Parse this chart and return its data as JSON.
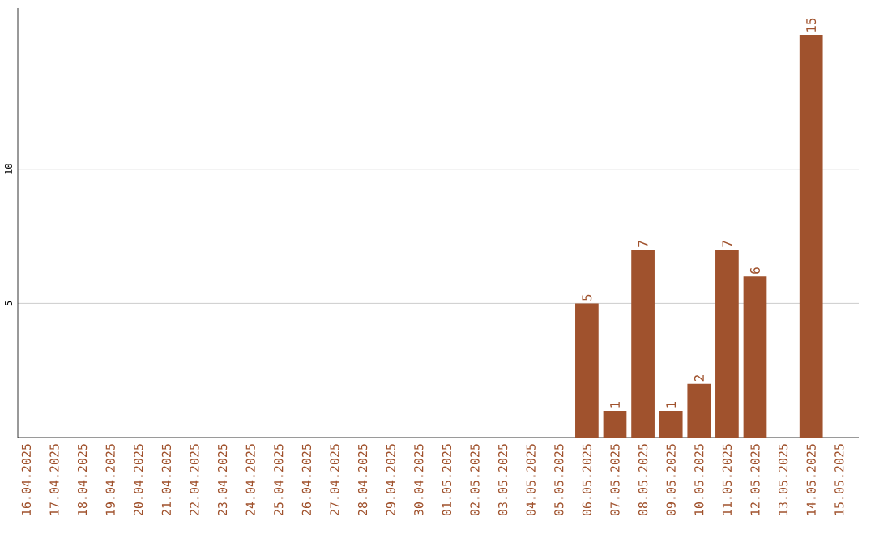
{
  "chart_data": {
    "type": "bar",
    "categories": [
      "16.04.2025",
      "17.04.2025",
      "18.04.2025",
      "19.04.2025",
      "20.04.2025",
      "21.04.2025",
      "22.04.2025",
      "23.04.2025",
      "24.04.2025",
      "25.04.2025",
      "26.04.2025",
      "27.04.2025",
      "28.04.2025",
      "29.04.2025",
      "30.04.2025",
      "01.05.2025",
      "02.05.2025",
      "03.05.2025",
      "04.05.2025",
      "05.05.2025",
      "06.05.2025",
      "07.05.2025",
      "08.05.2025",
      "09.05.2025",
      "10.05.2025",
      "11.05.2025",
      "12.05.2025",
      "13.05.2025",
      "14.05.2025",
      "15.05.2025"
    ],
    "values": [
      0,
      0,
      0,
      0,
      0,
      0,
      0,
      0,
      0,
      0,
      0,
      0,
      0,
      0,
      0,
      0,
      0,
      0,
      0,
      0,
      5,
      1,
      7,
      1,
      2,
      7,
      6,
      0,
      15,
      0
    ],
    "value_labels": [
      null,
      null,
      null,
      null,
      null,
      null,
      null,
      null,
      null,
      null,
      null,
      null,
      null,
      null,
      null,
      null,
      null,
      null,
      null,
      null,
      "5",
      "1",
      "7",
      "1",
      "2",
      "7",
      "6",
      null,
      "15",
      null
    ],
    "color": "#a0522d",
    "ylim": [
      0,
      16
    ],
    "yticks": [
      5,
      10
    ],
    "grid": "y"
  }
}
